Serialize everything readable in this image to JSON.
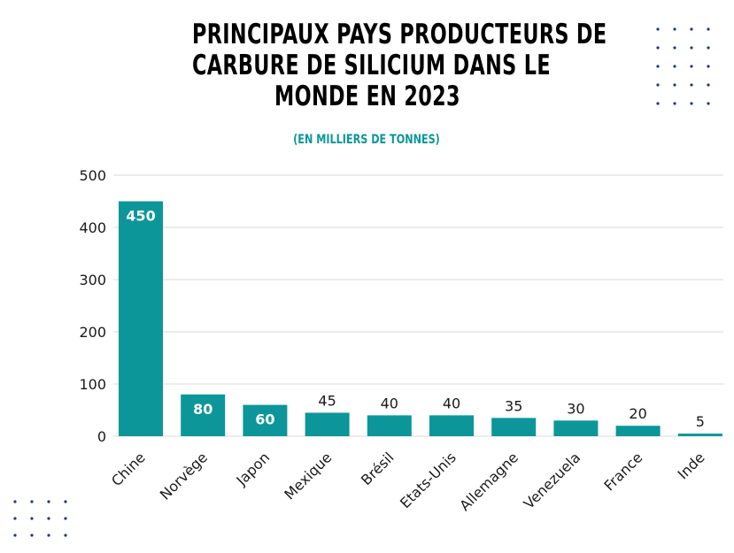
{
  "title_lines": [
    "PRINCIPAUX PAYS PRODUCTEURS DE",
    "CARBURE DE SILICIUM DANS LE",
    "MONDE EN 2023"
  ],
  "subtitle": "(EN MILLIERS DE TONNES)",
  "colors": {
    "bar": "#0d969a",
    "subtitle": "#0d969a",
    "dots": "#1f3b73",
    "grid": "#d9d9d9",
    "text": "#1a1a1a"
  },
  "chart_data": {
    "type": "bar",
    "title": "PRINCIPAUX PAYS PRODUCTEURS DE CARBURE DE SILICIUM DANS LE MONDE EN 2023",
    "subtitle": "(EN MILLIERS DE TONNES)",
    "categories": [
      "Chine",
      "Norvège",
      "Japon",
      "Mexique",
      "Brésil",
      "Etats-Unis",
      "Allemagne",
      "Venezuela",
      "France",
      "Inde"
    ],
    "values": [
      450,
      80,
      60,
      45,
      40,
      40,
      35,
      30,
      20,
      5
    ],
    "data_labels": [
      "450",
      "80",
      "60",
      "45",
      "40",
      "40",
      "35",
      "30",
      "20",
      "5"
    ],
    "ylim": [
      0,
      500
    ],
    "yticks": [
      "0",
      "100",
      "200",
      "300",
      "400",
      "500"
    ],
    "grid": true,
    "xlabel": "",
    "ylabel": ""
  }
}
